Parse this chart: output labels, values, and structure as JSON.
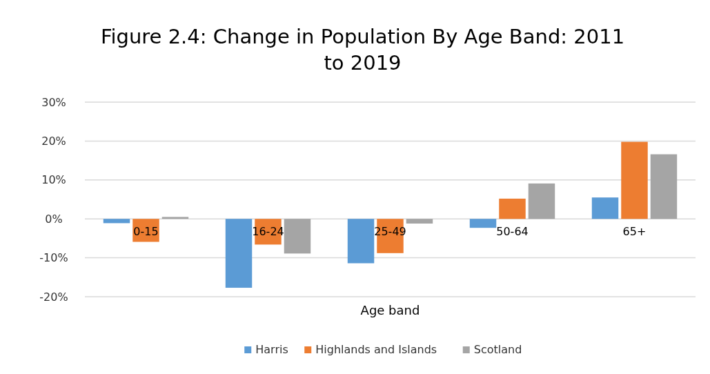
{
  "chart_data": {
    "type": "bar",
    "title": "Figure 2.4: Change in Population By Age Band: 2011 to 2019",
    "xlabel": "Age band",
    "categories": [
      "0-15",
      "16-24",
      "25-49",
      "50-64",
      "65+"
    ],
    "series": [
      {
        "name": "Harris",
        "color": "#5b9bd5",
        "values": [
          -1.1,
          -17.7,
          -11.4,
          -2.3,
          5.5
        ]
      },
      {
        "name": "Highlands and Islands",
        "color": "#ed7d31",
        "values": [
          -5.9,
          -6.6,
          -8.8,
          5.2,
          19.8
        ]
      },
      {
        "name": "Scotland",
        "color": "#a5a5a5",
        "values": [
          0.5,
          -8.9,
          -1.2,
          9.1,
          16.6
        ]
      }
    ],
    "ylim": [
      -20,
      30
    ],
    "yticks": [
      {
        "value": -20,
        "label": "-20%"
      },
      {
        "value": -10,
        "label": "-10%"
      },
      {
        "value": 0,
        "label": "0%"
      },
      {
        "value": 10,
        "label": "10%"
      },
      {
        "value": 20,
        "label": "20%"
      },
      {
        "value": 30,
        "label": "30%"
      }
    ],
    "grid": "y",
    "legend": "bottom"
  }
}
